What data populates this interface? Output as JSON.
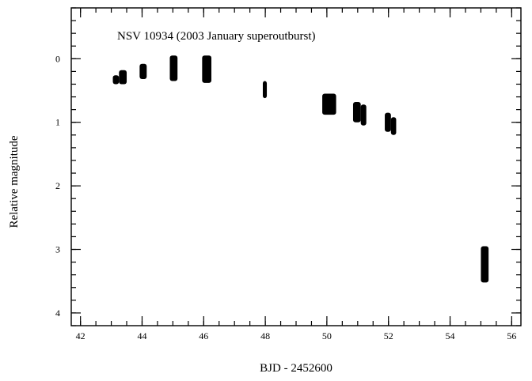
{
  "chart_data": {
    "type": "scatter",
    "title": "NSV 10934 (2003 January superoutburst)",
    "xlabel": "BJD - 2452600",
    "ylabel": "Relative  magnitude",
    "xlim": [
      41.7,
      56.3
    ],
    "ylim": [
      -0.8,
      4.2
    ],
    "y_inverted": true,
    "grid": false,
    "x_ticks": [
      42,
      44,
      46,
      48,
      50,
      52,
      54,
      56
    ],
    "x_minor_step": 0.5,
    "y_ticks": [
      0,
      1,
      2,
      3,
      4
    ],
    "y_minor_step": 0.2,
    "marker_color": "#000000",
    "clusters": [
      {
        "x_start": 43.05,
        "x_end": 43.25,
        "y_min": 0.26,
        "y_max": 0.4
      },
      {
        "x_start": 43.25,
        "x_end": 43.5,
        "y_min": 0.18,
        "y_max": 0.4
      },
      {
        "x_start": 43.92,
        "x_end": 44.15,
        "y_min": 0.08,
        "y_max": 0.32
      },
      {
        "x_start": 44.9,
        "x_end": 45.15,
        "y_min": -0.05,
        "y_max": 0.35
      },
      {
        "x_start": 45.95,
        "x_end": 46.25,
        "y_min": -0.05,
        "y_max": 0.38
      },
      {
        "x_start": 47.92,
        "x_end": 48.05,
        "y_min": 0.35,
        "y_max": 0.62
      },
      {
        "x_start": 49.85,
        "x_end": 50.3,
        "y_min": 0.55,
        "y_max": 0.88
      },
      {
        "x_start": 50.85,
        "x_end": 51.1,
        "y_min": 0.68,
        "y_max": 1.0
      },
      {
        "x_start": 51.1,
        "x_end": 51.28,
        "y_min": 0.72,
        "y_max": 1.05
      },
      {
        "x_start": 51.88,
        "x_end": 52.08,
        "y_min": 0.85,
        "y_max": 1.15
      },
      {
        "x_start": 52.08,
        "x_end": 52.25,
        "y_min": 0.92,
        "y_max": 1.2
      },
      {
        "x_start": 55.0,
        "x_end": 55.25,
        "y_min": 2.95,
        "y_max": 3.52
      }
    ]
  }
}
